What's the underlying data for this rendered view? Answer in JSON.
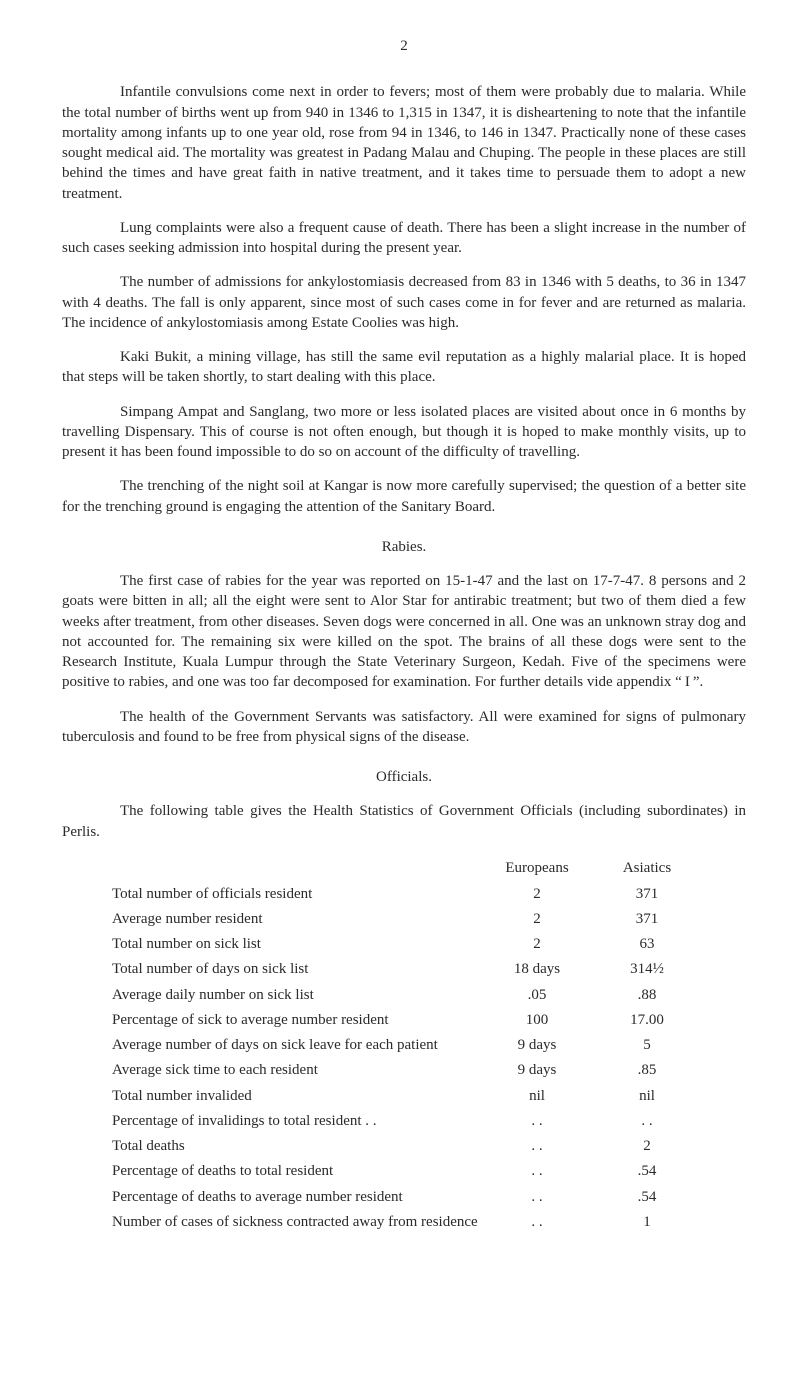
{
  "page_number": "2",
  "paragraphs": {
    "p1": "Infantile convulsions come next in order to fevers; most of them were probably due to malaria. While the total number of births went up from 940 in 1346 to 1,315 in 1347, it is disheartening to note that the infantile mortality among infants up to one year old, rose from 94 in 1346, to 146 in 1347. Practically none of these cases sought medical aid. The mortality was greatest in Padang Malau and Chuping. The people in these places are still behind the times and have great faith in native treatment, and it takes time to persuade them to adopt a new treatment.",
    "p2": "Lung complaints were also a frequent cause of death. There has been a slight increase in the number of such cases seeking admission into hospital during the present year.",
    "p3": "The number of admissions for ankylostomiasis decreased from 83 in 1346 with 5 deaths, to 36 in 1347 with 4 deaths. The fall is only apparent, since most of such cases come in for fever and are returned as malaria. The incidence of ankylostomiasis among Estate Coolies was high.",
    "p4": "Kaki Bukit, a mining village, has still the same evil reputation as a highly malarial place. It is hoped that steps will be taken shortly, to start dealing with this place.",
    "p5": "Simpang Ampat and Sanglang, two more or less isolated places are visited about once in 6 months by travelling Dispensary. This of course is not often enough, but though it is hoped to make monthly visits, up to present it has been found impossible to do so on account of the difficulty of travelling.",
    "p6": "The trenching of the night soil at Kangar is now more carefully supervised; the question of a better site for the trenching ground is engaging the attention of the Sanitary Board.",
    "rabies_head": "Rabies.",
    "p7": "The first case of rabies for the year was reported on 15-1-47 and the last on 17-7-47. 8 persons and 2 goats were bitten in all; all the eight were sent to Alor Star for antirabic treatment; but two of them died a few weeks after treatment, from other diseases. Seven dogs were concerned in all. One was an unknown stray dog and not accounted for. The remaining six were killed on the spot. The brains of all these dogs were sent to the Research Institute, Kuala Lumpur through the State Veterinary Surgeon, Kedah. Five of the specimens were positive to rabies, and one was too far decomposed for examination. For further details vide appendix “ I ”.",
    "p8": "The health of the Government Servants was satisfactory. All were examined for signs of pulmonary tuberculosis and found to be free from physical signs of the disease.",
    "officials_head": "Officials.",
    "p9": "The following table gives the Health Statistics of Government Officials (including subordinates) in Perlis."
  },
  "table": {
    "head_eur": "Europeans",
    "head_asi": "Asiatics",
    "rows": [
      {
        "label": "Total number of officials resident",
        "eur": "2",
        "asi": "371"
      },
      {
        "label": "Average number resident",
        "eur": "2",
        "asi": "371"
      },
      {
        "label": "Total number on sick list",
        "eur": "2",
        "asi": "63"
      },
      {
        "label": "Total number of days on sick list",
        "eur": "18 days",
        "asi": "314½"
      },
      {
        "label": "Average daily number on sick list",
        "eur": ".05",
        "asi": ".88"
      },
      {
        "label": "Percentage of sick to average number resident",
        "eur": "100",
        "asi": "17.00"
      },
      {
        "label": "Average number of days on sick leave for each patient",
        "eur": "9 days",
        "asi": "5"
      },
      {
        "label": "Average sick time to each resident",
        "eur": "9 days",
        "asi": ".85"
      },
      {
        "label": "Total number invalided",
        "eur": "nil",
        "asi": "nil"
      },
      {
        "label": "Percentage of invalidings to total resident . .",
        "eur": ". .",
        "asi": ". ."
      },
      {
        "label": "Total deaths",
        "eur": ". .",
        "asi": "2"
      },
      {
        "label": "Percentage of deaths to total resident",
        "eur": ". .",
        "asi": ".54"
      },
      {
        "label": "Percentage of deaths to average number resident",
        "eur": ". .",
        "asi": ".54"
      },
      {
        "label": "Number of cases of sickness contracted away from residence",
        "eur": ". .",
        "asi": "1"
      }
    ]
  }
}
